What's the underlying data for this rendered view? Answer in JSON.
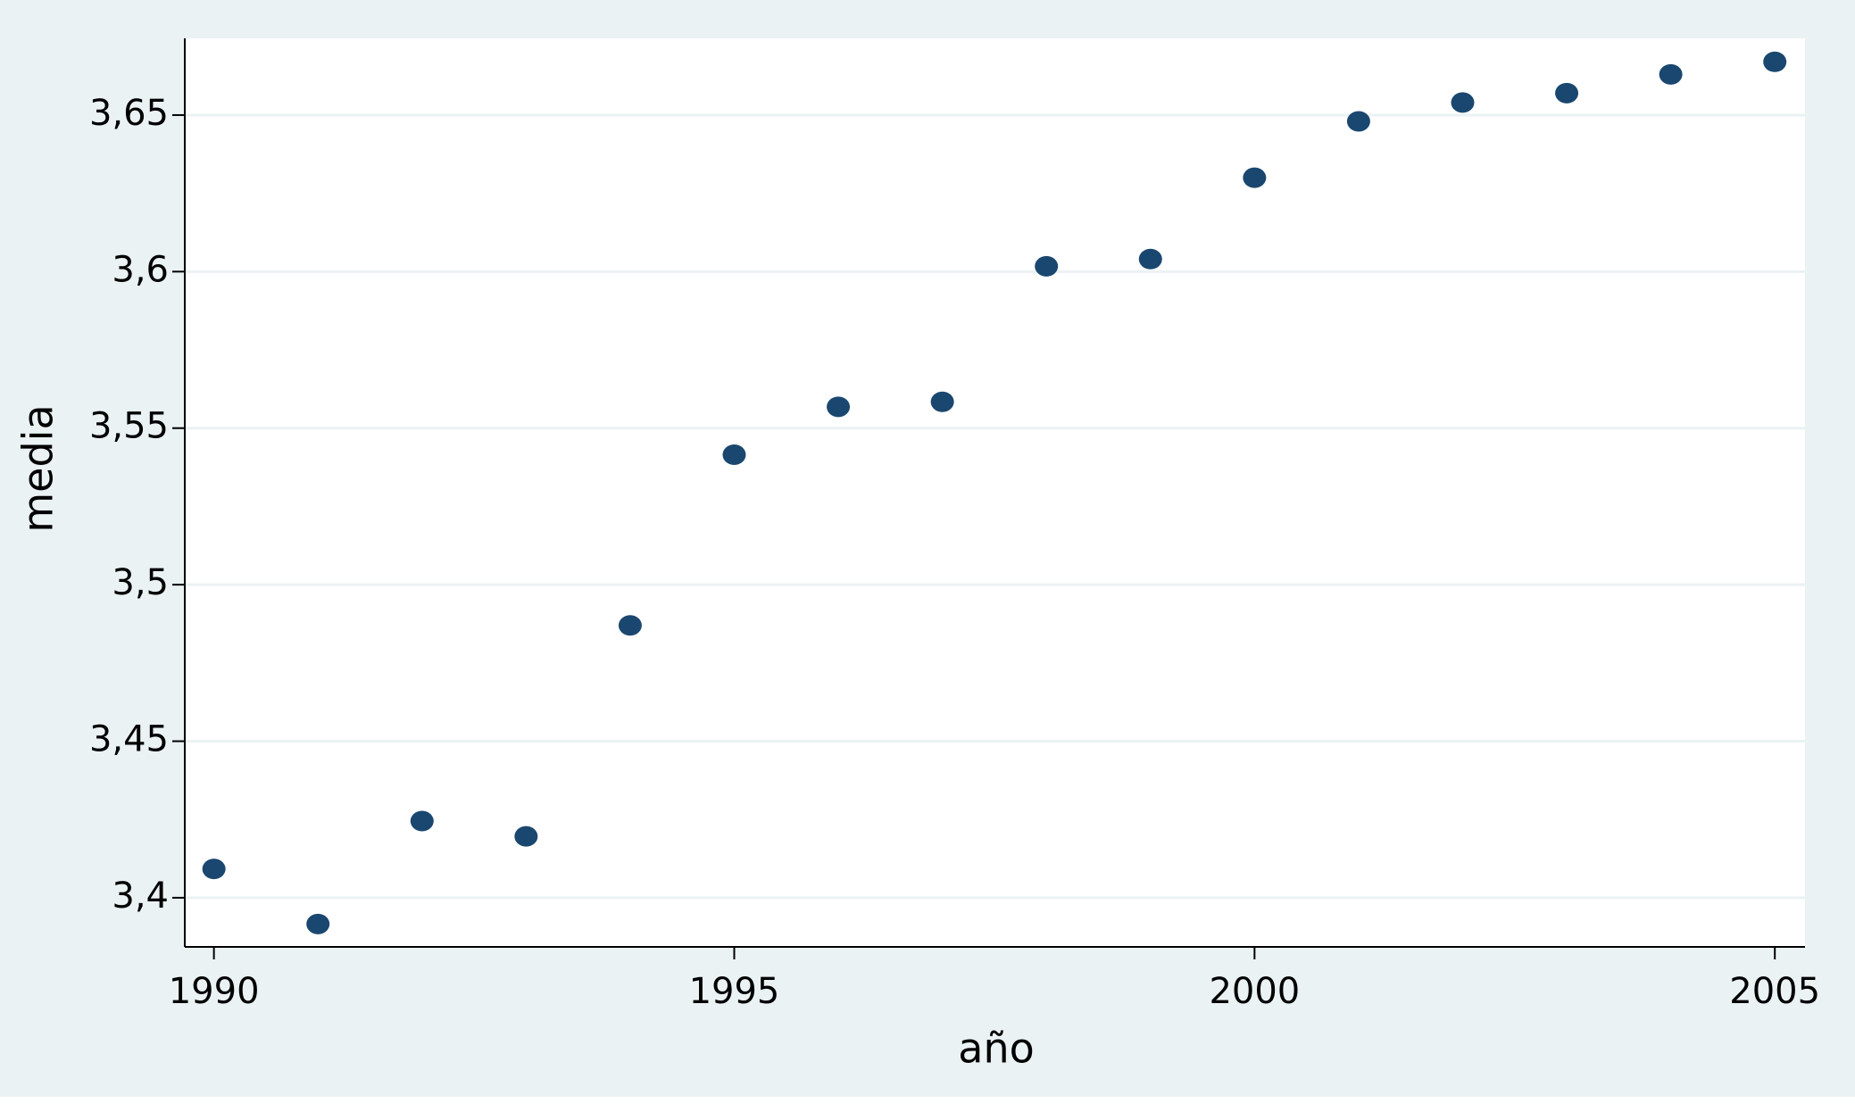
{
  "chart_data": {
    "type": "scatter",
    "x_label": "año",
    "y_label": "media",
    "x": [
      1990,
      1991,
      1992,
      1993,
      1994,
      1995,
      1996,
      1997,
      1998,
      1999,
      2000,
      2001,
      2002,
      2003,
      2004,
      2005
    ],
    "values": [
      3.4092,
      3.3916,
      3.4245,
      3.4196,
      3.487,
      3.5415,
      3.5568,
      3.5584,
      3.6017,
      3.604,
      3.63,
      3.648,
      3.654,
      3.657,
      3.663,
      3.667
    ],
    "color": "#1a476f",
    "xlim": [
      1989.72,
      2005.29
    ],
    "xticks": [
      1990,
      1995,
      2000,
      2005
    ],
    "ylim": [
      3.3843,
      3.6745
    ],
    "yticks": [
      {
        "value": 3.4,
        "label": "3,4"
      },
      {
        "value": 3.45,
        "label": "3,45"
      },
      {
        "value": 3.5,
        "label": "3,5"
      },
      {
        "value": 3.55,
        "label": "3,55"
      },
      {
        "value": 3.6,
        "label": "3,6"
      },
      {
        "value": 3.65,
        "label": "3,65"
      }
    ],
    "grid": true
  }
}
